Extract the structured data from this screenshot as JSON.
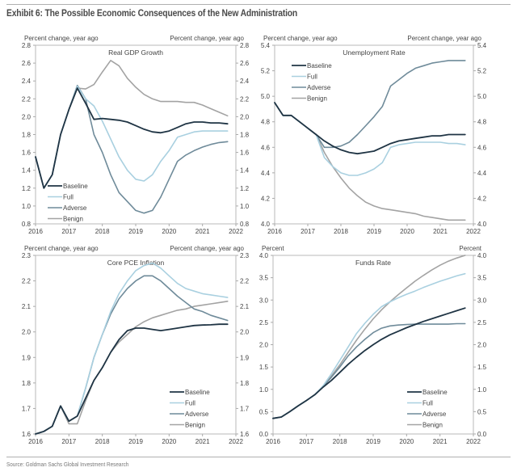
{
  "title": "Exhibit 6: The Possible Economic Consequences of the New Administration",
  "source": "Source: Goldman Sachs Global Investment Research",
  "series_styles": {
    "Baseline": "#1f3444",
    "Full": "#a9d0e0",
    "Adverse": "#6f8b9a",
    "Benign": "#a3a3a3"
  },
  "chart_data": [
    {
      "id": "gdp",
      "type": "line",
      "title": "Real GDP Growth",
      "ylabel_left": "Percent change, year ago",
      "ylabel_right": "Percent change, year ago",
      "xlim": [
        2016,
        2022
      ],
      "ylim": [
        0.8,
        2.8
      ],
      "xticks": [
        2016,
        2017,
        2018,
        2019,
        2020,
        2021,
        2022
      ],
      "yticks": [
        0.8,
        1.0,
        1.2,
        1.4,
        1.6,
        1.8,
        2.0,
        2.2,
        2.4,
        2.6,
        2.8
      ],
      "ytick_decimals": 1,
      "legend": "bottom-left",
      "x": [
        2016.0,
        2016.25,
        2016.5,
        2016.75,
        2017.0,
        2017.25,
        2017.5,
        2017.75,
        2018.0,
        2018.25,
        2018.5,
        2018.75,
        2019.0,
        2019.25,
        2019.5,
        2019.75,
        2020.0,
        2020.25,
        2020.5,
        2020.75,
        2021.0,
        2021.25,
        2021.5,
        2021.75
      ],
      "series": [
        {
          "name": "Baseline",
          "values": [
            1.55,
            1.2,
            1.35,
            1.8,
            2.08,
            2.32,
            2.15,
            1.97,
            1.98,
            1.97,
            1.96,
            1.94,
            1.9,
            1.86,
            1.83,
            1.82,
            1.84,
            1.88,
            1.92,
            1.94,
            1.94,
            1.93,
            1.93,
            1.92
          ]
        },
        {
          "name": "Full",
          "values": [
            1.55,
            1.2,
            1.35,
            1.8,
            2.08,
            2.34,
            2.2,
            2.12,
            1.95,
            1.75,
            1.55,
            1.4,
            1.3,
            1.28,
            1.35,
            1.5,
            1.62,
            1.77,
            1.8,
            1.83,
            1.84,
            1.84,
            1.84,
            1.84
          ]
        },
        {
          "name": "Adverse",
          "values": [
            1.55,
            1.2,
            1.35,
            1.8,
            2.08,
            2.35,
            2.2,
            1.8,
            1.6,
            1.35,
            1.15,
            1.05,
            0.95,
            0.92,
            0.95,
            1.1,
            1.3,
            1.5,
            1.57,
            1.62,
            1.66,
            1.69,
            1.71,
            1.72
          ]
        },
        {
          "name": "Benign",
          "values": [
            1.55,
            1.2,
            1.35,
            1.8,
            2.08,
            2.32,
            2.31,
            2.36,
            2.5,
            2.63,
            2.57,
            2.43,
            2.33,
            2.25,
            2.2,
            2.17,
            2.17,
            2.17,
            2.16,
            2.16,
            2.13,
            2.09,
            2.05,
            2.01
          ]
        }
      ]
    },
    {
      "id": "unemp",
      "type": "line",
      "title": "Unemployment Rate",
      "ylabel_left": "Percent change, year ago",
      "ylabel_right": "Percent change, year ago",
      "xlim": [
        2016,
        2022
      ],
      "ylim": [
        4.0,
        5.4
      ],
      "xticks": [
        2016,
        2017,
        2018,
        2019,
        2020,
        2021,
        2022
      ],
      "yticks": [
        4.0,
        4.2,
        4.4,
        4.6,
        4.8,
        5.0,
        5.2,
        5.4
      ],
      "ytick_decimals": 1,
      "legend": "top-left",
      "x": [
        2016.0,
        2016.25,
        2016.5,
        2016.75,
        2017.0,
        2017.25,
        2017.5,
        2017.75,
        2018.0,
        2018.25,
        2018.5,
        2018.75,
        2019.0,
        2019.25,
        2019.5,
        2019.75,
        2020.0,
        2020.25,
        2020.5,
        2020.75,
        2021.0,
        2021.25,
        2021.5,
        2021.75
      ],
      "series": [
        {
          "name": "Baseline",
          "values": [
            4.95,
            4.85,
            4.85,
            4.8,
            4.75,
            4.7,
            4.65,
            4.61,
            4.58,
            4.56,
            4.55,
            4.56,
            4.57,
            4.6,
            4.63,
            4.65,
            4.66,
            4.67,
            4.68,
            4.69,
            4.69,
            4.7,
            4.7,
            4.7
          ]
        },
        {
          "name": "Full",
          "values": [
            4.95,
            4.85,
            4.85,
            4.8,
            4.75,
            4.7,
            4.52,
            4.45,
            4.4,
            4.38,
            4.38,
            4.4,
            4.43,
            4.48,
            4.6,
            4.62,
            4.63,
            4.64,
            4.64,
            4.64,
            4.64,
            4.63,
            4.63,
            4.62
          ]
        },
        {
          "name": "Adverse",
          "values": [
            4.95,
            4.85,
            4.85,
            4.8,
            4.75,
            4.7,
            4.6,
            4.6,
            4.61,
            4.64,
            4.7,
            4.77,
            4.84,
            4.92,
            5.08,
            5.13,
            5.18,
            5.22,
            5.24,
            5.26,
            5.27,
            5.28,
            5.28,
            5.28
          ]
        },
        {
          "name": "Benign",
          "values": [
            4.95,
            4.85,
            4.85,
            4.8,
            4.75,
            4.7,
            4.56,
            4.45,
            4.36,
            4.28,
            4.22,
            4.17,
            4.14,
            4.12,
            4.11,
            4.1,
            4.09,
            4.08,
            4.06,
            4.05,
            4.04,
            4.03,
            4.03,
            4.03
          ]
        }
      ]
    },
    {
      "id": "pce",
      "type": "line",
      "title": "Core PCE Inflation",
      "ylabel_left": "Percent change, year ago",
      "ylabel_right": "Percent change, year ago",
      "xlim": [
        2016,
        2022
      ],
      "ylim": [
        1.6,
        2.3
      ],
      "xticks": [
        2016,
        2017,
        2018,
        2019,
        2020,
        2021,
        2022
      ],
      "yticks": [
        1.6,
        1.7,
        1.8,
        1.9,
        2.0,
        2.1,
        2.2,
        2.3
      ],
      "ytick_decimals": 1,
      "legend": "bottom-right",
      "x": [
        2016.0,
        2016.25,
        2016.5,
        2016.75,
        2017.0,
        2017.25,
        2017.5,
        2017.75,
        2018.0,
        2018.25,
        2018.5,
        2018.75,
        2019.0,
        2019.25,
        2019.5,
        2019.75,
        2020.0,
        2020.25,
        2020.5,
        2020.75,
        2021.0,
        2021.25,
        2021.5,
        2021.75
      ],
      "series": [
        {
          "name": "Baseline",
          "values": [
            1.6,
            1.61,
            1.63,
            1.71,
            1.65,
            1.67,
            1.74,
            1.81,
            1.86,
            1.92,
            1.97,
            2.005,
            2.015,
            2.015,
            2.01,
            2.005,
            2.01,
            2.015,
            2.02,
            2.025,
            2.027,
            2.028,
            2.03,
            2.03
          ]
        },
        {
          "name": "Full",
          "values": [
            1.6,
            1.61,
            1.63,
            1.71,
            1.65,
            1.67,
            1.78,
            1.9,
            1.99,
            2.08,
            2.15,
            2.2,
            2.24,
            2.26,
            2.27,
            2.25,
            2.22,
            2.19,
            2.17,
            2.16,
            2.15,
            2.145,
            2.14,
            2.135
          ]
        },
        {
          "name": "Adverse",
          "values": [
            1.6,
            1.61,
            1.63,
            1.71,
            1.65,
            1.67,
            1.78,
            1.9,
            1.99,
            2.07,
            2.13,
            2.17,
            2.2,
            2.22,
            2.22,
            2.2,
            2.17,
            2.14,
            2.115,
            2.09,
            2.08,
            2.065,
            2.055,
            2.045
          ]
        },
        {
          "name": "Benign",
          "values": [
            1.6,
            1.61,
            1.63,
            1.71,
            1.64,
            1.64,
            1.73,
            1.81,
            1.86,
            1.92,
            1.96,
            1.99,
            2.02,
            2.04,
            2.055,
            2.065,
            2.075,
            2.085,
            2.09,
            2.1,
            2.105,
            2.11,
            2.115,
            2.12
          ]
        }
      ]
    },
    {
      "id": "funds",
      "type": "line",
      "title": "Funds Rate",
      "ylabel_left": "Percent",
      "ylabel_right": "Percent",
      "xlim": [
        2016,
        2022
      ],
      "ylim": [
        0.0,
        4.0
      ],
      "xticks": [
        2016,
        2017,
        2018,
        2019,
        2020,
        2021,
        2022
      ],
      "yticks": [
        0.0,
        0.5,
        1.0,
        1.5,
        2.0,
        2.5,
        3.0,
        3.5,
        4.0
      ],
      "ytick_decimals": 1,
      "legend": "bottom-right",
      "x": [
        2016.0,
        2016.25,
        2016.5,
        2016.75,
        2017.0,
        2017.25,
        2017.5,
        2017.75,
        2018.0,
        2018.25,
        2018.5,
        2018.75,
        2019.0,
        2019.25,
        2019.5,
        2019.75,
        2020.0,
        2020.25,
        2020.5,
        2020.75,
        2021.0,
        2021.25,
        2021.5,
        2021.75
      ],
      "series": [
        {
          "name": "Baseline",
          "values": [
            0.35,
            0.38,
            0.5,
            0.63,
            0.75,
            0.88,
            1.05,
            1.2,
            1.38,
            1.56,
            1.72,
            1.87,
            2.0,
            2.12,
            2.22,
            2.3,
            2.38,
            2.45,
            2.52,
            2.58,
            2.64,
            2.7,
            2.76,
            2.82
          ]
        },
        {
          "name": "Full",
          "values": [
            0.35,
            0.38,
            0.5,
            0.63,
            0.75,
            0.88,
            1.08,
            1.35,
            1.65,
            1.95,
            2.25,
            2.48,
            2.68,
            2.85,
            2.96,
            3.05,
            3.13,
            3.2,
            3.28,
            3.35,
            3.42,
            3.48,
            3.54,
            3.59
          ]
        },
        {
          "name": "Adverse",
          "values": [
            0.35,
            0.38,
            0.5,
            0.63,
            0.75,
            0.88,
            1.07,
            1.27,
            1.5,
            1.75,
            1.95,
            2.12,
            2.27,
            2.37,
            2.42,
            2.44,
            2.45,
            2.46,
            2.46,
            2.46,
            2.46,
            2.46,
            2.47,
            2.47
          ]
        },
        {
          "name": "Benign",
          "values": [
            0.35,
            0.38,
            0.5,
            0.63,
            0.75,
            0.88,
            1.07,
            1.3,
            1.55,
            1.83,
            2.1,
            2.35,
            2.58,
            2.78,
            2.96,
            3.12,
            3.27,
            3.42,
            3.55,
            3.67,
            3.78,
            3.87,
            3.94,
            4.0
          ]
        }
      ]
    }
  ]
}
